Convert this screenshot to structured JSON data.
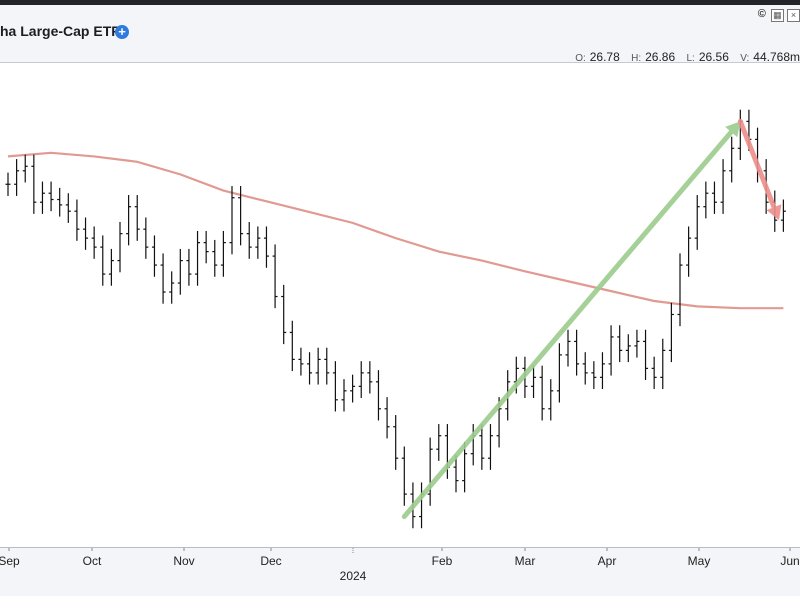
{
  "header": {
    "title": "ha Large-Cap ETF",
    "copyright": "©",
    "icons": [
      "plus-icon",
      "chart-settings-icon",
      "close-icon"
    ]
  },
  "ohlc": {
    "open_label": "O:",
    "open": "26.78",
    "high_label": "H:",
    "high": "26.86",
    "low_label": "L:",
    "low": "26.56",
    "volume_label": "V:",
    "volume": "44.768m"
  },
  "colors": {
    "background": "#f4f5f8",
    "plot_background": "#ffffff",
    "price_bars": "#111111",
    "moving_average": "#e19a92",
    "uptrend_arrow": "#9ccc8c",
    "downtrend_arrow": "#ee8f8c",
    "plus_icon": "#2f7ae0"
  },
  "chart_data": {
    "type": "ohlc",
    "title": "ha Large-Cap ETF",
    "x_axis": {
      "months": [
        "Sep",
        "Oct",
        "Nov",
        "Dec",
        "Feb",
        "Mar",
        "Apr",
        "May",
        "Jun"
      ],
      "year_label": "2024"
    },
    "price_series": [
      {
        "x": 0,
        "close": 26.55
      },
      {
        "x": 2,
        "close": 26.7
      },
      {
        "x": 4,
        "close": 26.75
      },
      {
        "x": 6,
        "close": 26.35
      },
      {
        "x": 8,
        "close": 26.45
      },
      {
        "x": 10,
        "close": 26.38
      },
      {
        "x": 12,
        "close": 26.32
      },
      {
        "x": 14,
        "close": 26.25
      },
      {
        "x": 16,
        "close": 26.05
      },
      {
        "x": 18,
        "close": 25.95
      },
      {
        "x": 20,
        "close": 25.85
      },
      {
        "x": 22,
        "close": 25.55
      },
      {
        "x": 24,
        "close": 25.7
      },
      {
        "x": 26,
        "close": 26.0
      },
      {
        "x": 28,
        "close": 26.3
      },
      {
        "x": 30,
        "close": 26.05
      },
      {
        "x": 32,
        "close": 25.85
      },
      {
        "x": 34,
        "close": 25.65
      },
      {
        "x": 36,
        "close": 25.35
      },
      {
        "x": 38,
        "close": 25.45
      },
      {
        "x": 40,
        "close": 25.7
      },
      {
        "x": 42,
        "close": 25.55
      },
      {
        "x": 44,
        "close": 25.9
      },
      {
        "x": 46,
        "close": 25.8
      },
      {
        "x": 48,
        "close": 25.65
      },
      {
        "x": 50,
        "close": 25.9
      },
      {
        "x": 52,
        "close": 26.4
      },
      {
        "x": 54,
        "close": 26.0
      },
      {
        "x": 56,
        "close": 25.85
      },
      {
        "x": 58,
        "close": 25.95
      },
      {
        "x": 60,
        "close": 25.75
      },
      {
        "x": 62,
        "close": 25.3
      },
      {
        "x": 64,
        "close": 24.9
      },
      {
        "x": 66,
        "close": 24.6
      },
      {
        "x": 68,
        "close": 24.55
      },
      {
        "x": 70,
        "close": 24.45
      },
      {
        "x": 72,
        "close": 24.6
      },
      {
        "x": 74,
        "close": 24.45
      },
      {
        "x": 76,
        "close": 24.15
      },
      {
        "x": 78,
        "close": 24.25
      },
      {
        "x": 80,
        "close": 24.3
      },
      {
        "x": 82,
        "close": 24.45
      },
      {
        "x": 84,
        "close": 24.35
      },
      {
        "x": 86,
        "close": 24.05
      },
      {
        "x": 88,
        "close": 23.85
      },
      {
        "x": 90,
        "close": 23.5
      },
      {
        "x": 92,
        "close": 23.1
      },
      {
        "x": 94,
        "close": 22.85
      },
      {
        "x": 96,
        "close": 23.1
      },
      {
        "x": 98,
        "close": 23.6
      },
      {
        "x": 100,
        "close": 23.75
      },
      {
        "x": 102,
        "close": 23.4
      },
      {
        "x": 104,
        "close": 23.25
      },
      {
        "x": 106,
        "close": 23.55
      },
      {
        "x": 108,
        "close": 23.75
      },
      {
        "x": 110,
        "close": 23.5
      },
      {
        "x": 112,
        "close": 23.75
      },
      {
        "x": 114,
        "close": 24.05
      },
      {
        "x": 116,
        "close": 24.35
      },
      {
        "x": 118,
        "close": 24.5
      },
      {
        "x": 120,
        "close": 24.3
      },
      {
        "x": 122,
        "close": 24.4
      },
      {
        "x": 124,
        "close": 24.05
      },
      {
        "x": 126,
        "close": 24.25
      },
      {
        "x": 128,
        "close": 24.65
      },
      {
        "x": 130,
        "close": 24.8
      },
      {
        "x": 132,
        "close": 24.55
      },
      {
        "x": 134,
        "close": 24.45
      },
      {
        "x": 136,
        "close": 24.4
      },
      {
        "x": 138,
        "close": 24.55
      },
      {
        "x": 140,
        "close": 24.85
      },
      {
        "x": 142,
        "close": 24.7
      },
      {
        "x": 144,
        "close": 24.75
      },
      {
        "x": 146,
        "close": 24.8
      },
      {
        "x": 148,
        "close": 24.5
      },
      {
        "x": 150,
        "close": 24.4
      },
      {
        "x": 152,
        "close": 24.7
      },
      {
        "x": 154,
        "close": 25.1
      },
      {
        "x": 156,
        "close": 25.65
      },
      {
        "x": 158,
        "close": 25.95
      },
      {
        "x": 160,
        "close": 26.3
      },
      {
        "x": 162,
        "close": 26.45
      },
      {
        "x": 164,
        "close": 26.35
      },
      {
        "x": 166,
        "close": 26.7
      },
      {
        "x": 168,
        "close": 26.95
      },
      {
        "x": 170,
        "close": 27.25
      },
      {
        "x": 172,
        "close": 27.05
      },
      {
        "x": 174,
        "close": 26.7
      },
      {
        "x": 176,
        "close": 26.35
      },
      {
        "x": 178,
        "close": 26.15
      },
      {
        "x": 180,
        "close": 26.25
      }
    ],
    "moving_average": {
      "points": [
        {
          "x": 0,
          "y": 26.86
        },
        {
          "x": 10,
          "y": 26.9
        },
        {
          "x": 20,
          "y": 26.86
        },
        {
          "x": 30,
          "y": 26.8
        },
        {
          "x": 40,
          "y": 26.66
        },
        {
          "x": 50,
          "y": 26.48
        },
        {
          "x": 60,
          "y": 26.36
        },
        {
          "x": 70,
          "y": 26.24
        },
        {
          "x": 80,
          "y": 26.12
        },
        {
          "x": 90,
          "y": 25.95
        },
        {
          "x": 100,
          "y": 25.8
        },
        {
          "x": 110,
          "y": 25.7
        },
        {
          "x": 120,
          "y": 25.58
        },
        {
          "x": 130,
          "y": 25.47
        },
        {
          "x": 140,
          "y": 25.36
        },
        {
          "x": 150,
          "y": 25.25
        },
        {
          "x": 160,
          "y": 25.19
        },
        {
          "x": 170,
          "y": 25.17
        },
        {
          "x": 180,
          "y": 25.17
        }
      ]
    },
    "annotations": [
      {
        "type": "arrow",
        "color": "green",
        "from": {
          "x": 92,
          "y": 22.85
        },
        "to": {
          "x": 170,
          "y": 27.25
        }
      },
      {
        "type": "arrow",
        "color": "red",
        "from": {
          "x": 170,
          "y": 27.25
        },
        "to": {
          "x": 179,
          "y": 26.15
        }
      }
    ],
    "x_range": [
      0,
      182
    ],
    "y_range": [
      22.5,
      27.9
    ],
    "grid": false
  }
}
